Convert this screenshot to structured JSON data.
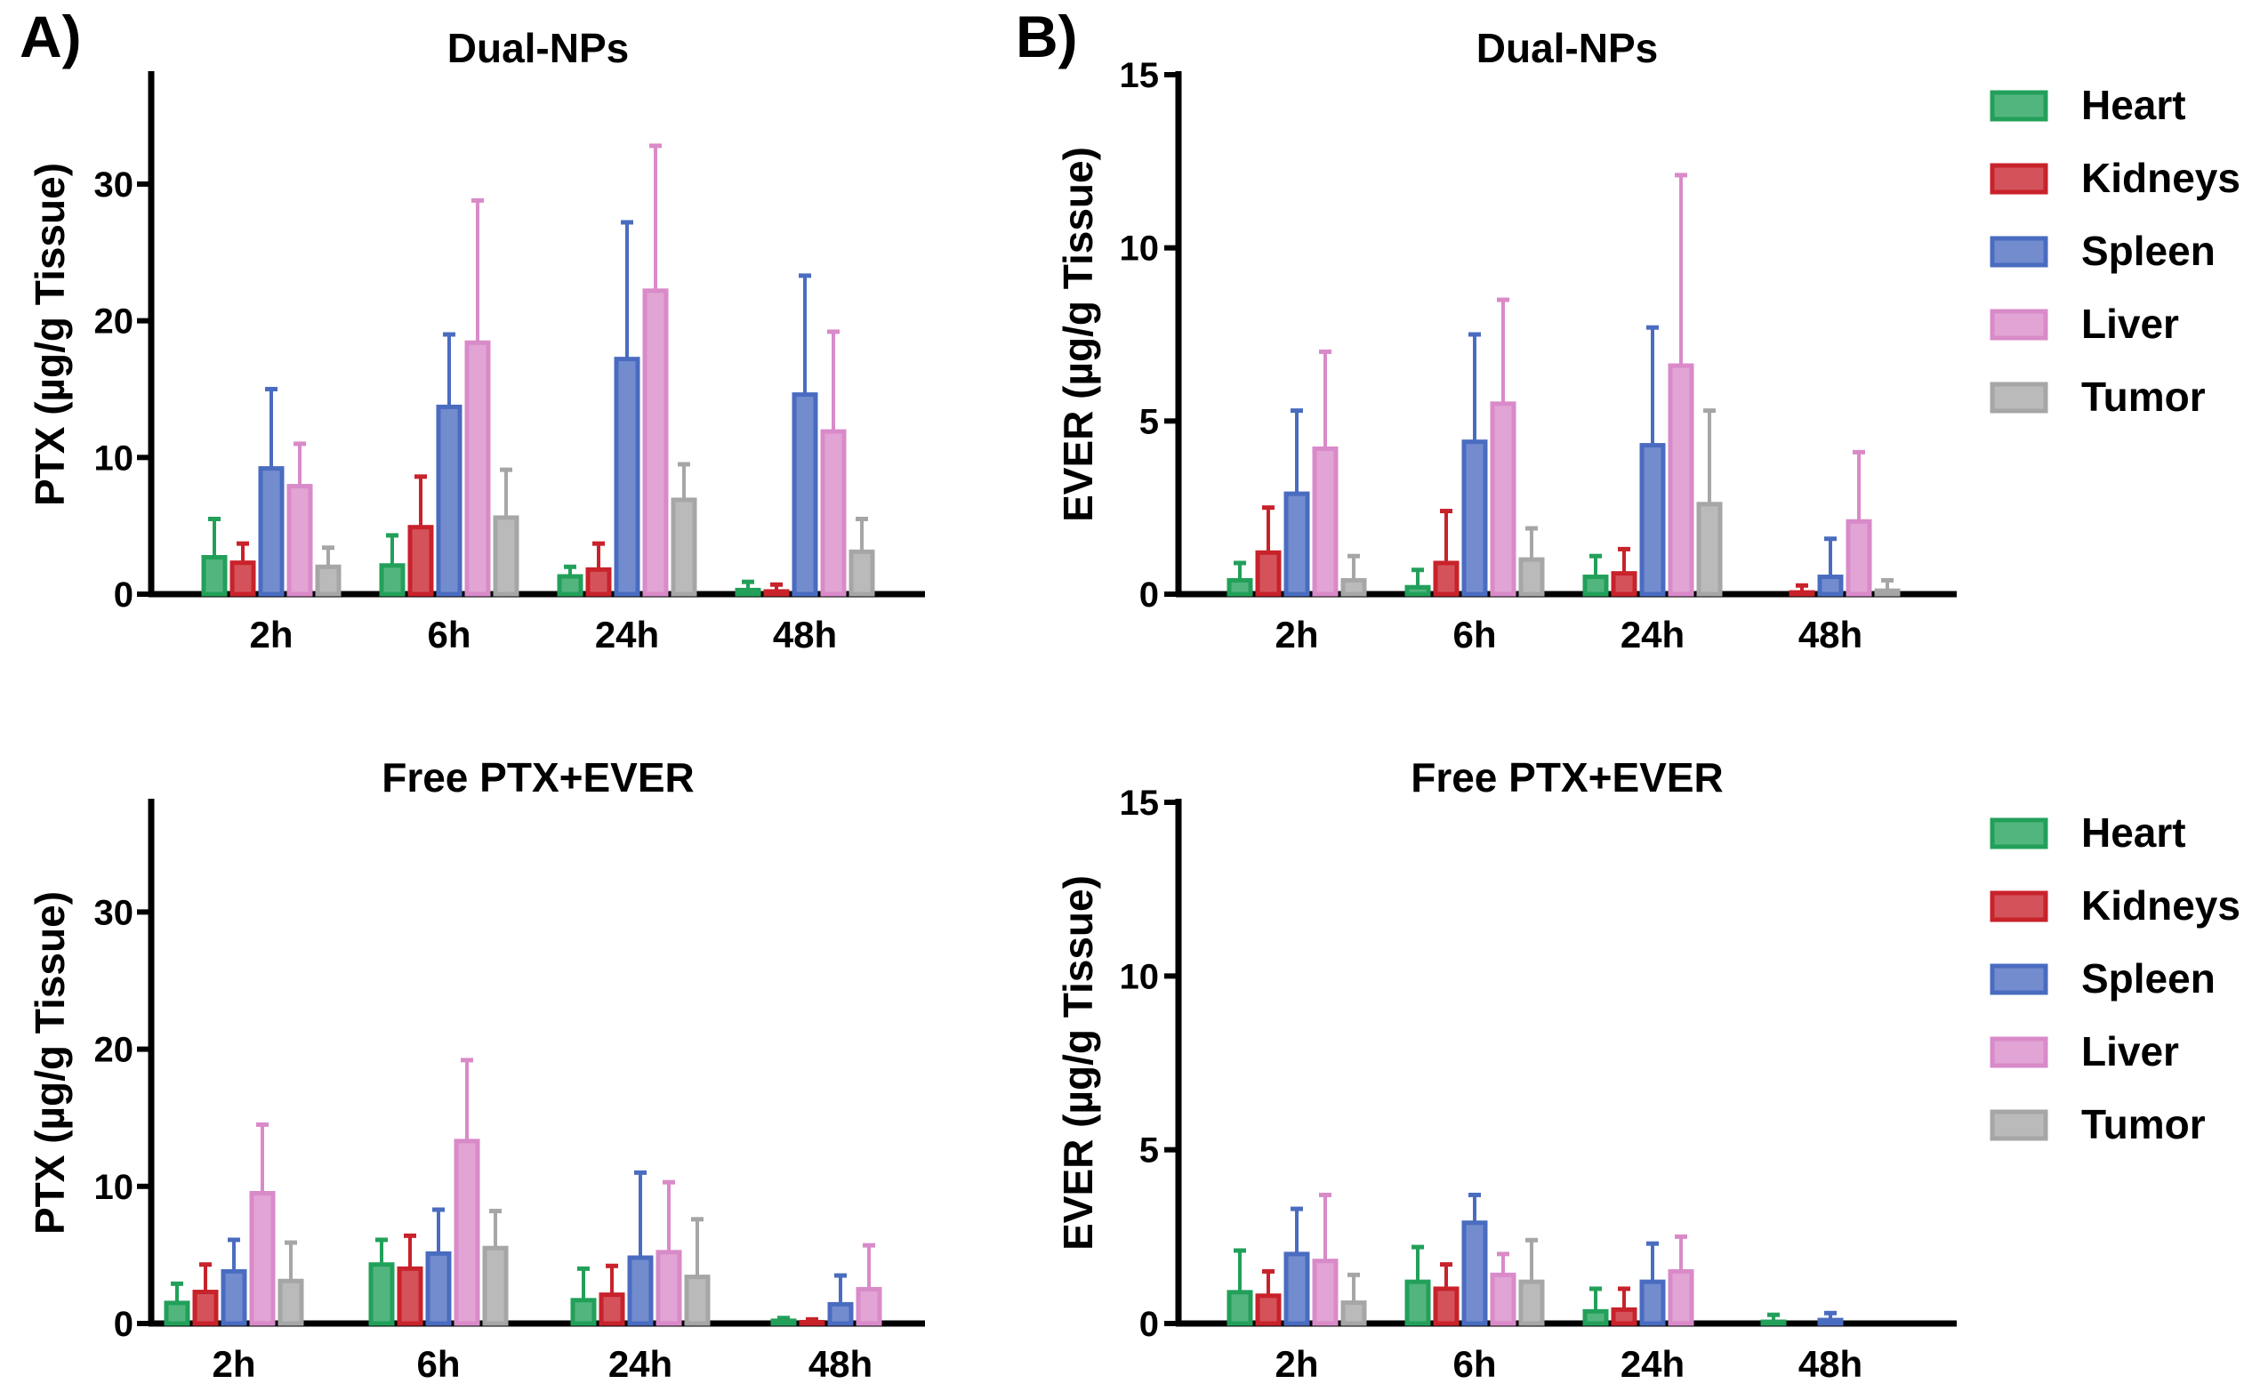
{
  "figure": {
    "panel_letters": [
      "A)",
      "B)"
    ]
  },
  "chart_data": [
    {
      "type": "bar",
      "title": "Dual-NPs",
      "ylabel": "PTX (µg/g Tissue)",
      "xlabel": "",
      "ylim": [
        0,
        38
      ],
      "yticks": [
        0,
        10,
        20,
        30
      ],
      "grid": false,
      "legend": "none",
      "categories": [
        "2h",
        "6h",
        "24h",
        "48h"
      ],
      "series": [
        {
          "name": "Heart",
          "color": "#22a05a",
          "values": [
            2.7,
            2.1,
            1.3,
            0.3
          ],
          "errors": [
            2.8,
            2.2,
            0.7,
            0.6
          ]
        },
        {
          "name": "Kidneys",
          "color": "#c8222b",
          "values": [
            2.3,
            4.9,
            1.8,
            0.2
          ],
          "errors": [
            1.4,
            3.7,
            1.9,
            0.5
          ]
        },
        {
          "name": "Spleen",
          "color": "#4a6cc0",
          "values": [
            9.2,
            13.7,
            17.2,
            14.6
          ],
          "errors": [
            5.8,
            5.3,
            10.0,
            8.7
          ]
        },
        {
          "name": "Liver",
          "color": "#d98ac8",
          "values": [
            7.9,
            18.4,
            22.2,
            11.9
          ],
          "errors": [
            3.1,
            10.4,
            10.6,
            7.3
          ]
        },
        {
          "name": "Tumor",
          "color": "#a6a6a6",
          "values": [
            2.0,
            5.6,
            6.9,
            3.1
          ],
          "errors": [
            1.4,
            3.5,
            2.6,
            2.4
          ]
        }
      ]
    },
    {
      "type": "bar",
      "title": "Dual-NPs",
      "ylabel": "EVER (µg/g Tissue)",
      "xlabel": "",
      "ylim": [
        0,
        15
      ],
      "yticks": [
        0,
        5,
        10,
        15
      ],
      "grid": false,
      "legend": "right",
      "categories": [
        "2h",
        "6h",
        "24h",
        "48h"
      ],
      "series": [
        {
          "name": "Heart",
          "color": "#22a05a",
          "values": [
            0.4,
            0.2,
            0.5,
            0.0
          ],
          "errors": [
            0.5,
            0.5,
            0.6,
            0.0
          ]
        },
        {
          "name": "Kidneys",
          "color": "#c8222b",
          "values": [
            1.2,
            0.9,
            0.6,
            0.05
          ],
          "errors": [
            1.3,
            1.5,
            0.7,
            0.2
          ]
        },
        {
          "name": "Spleen",
          "color": "#4a6cc0",
          "values": [
            2.9,
            4.4,
            4.3,
            0.5
          ],
          "errors": [
            2.4,
            3.1,
            3.4,
            1.1
          ]
        },
        {
          "name": "Liver",
          "color": "#d98ac8",
          "values": [
            4.2,
            5.5,
            6.6,
            2.1
          ],
          "errors": [
            2.8,
            3.0,
            5.5,
            2.0
          ]
        },
        {
          "name": "Tumor",
          "color": "#a6a6a6",
          "values": [
            0.4,
            1.0,
            2.6,
            0.1
          ],
          "errors": [
            0.7,
            0.9,
            2.7,
            0.3
          ]
        }
      ]
    },
    {
      "type": "bar",
      "title": "Free PTX+EVER",
      "ylabel": "PTX (µg/g Tissue)",
      "xlabel": "",
      "ylim": [
        0,
        38
      ],
      "yticks": [
        0,
        10,
        20,
        30
      ],
      "grid": false,
      "legend": "none",
      "categories": [
        "2h",
        "6h",
        "24h",
        "48h"
      ],
      "series": [
        {
          "name": "Heart",
          "color": "#22a05a",
          "values": [
            1.5,
            4.3,
            1.7,
            0.2
          ],
          "errors": [
            1.4,
            1.8,
            2.3,
            0.2
          ]
        },
        {
          "name": "Kidneys",
          "color": "#c8222b",
          "values": [
            2.3,
            4.0,
            2.1,
            0.1
          ],
          "errors": [
            2.0,
            2.4,
            2.1,
            0.2
          ]
        },
        {
          "name": "Spleen",
          "color": "#4a6cc0",
          "values": [
            3.8,
            5.1,
            4.8,
            1.4
          ],
          "errors": [
            2.3,
            3.2,
            6.2,
            2.1
          ]
        },
        {
          "name": "Liver",
          "color": "#d98ac8",
          "values": [
            9.5,
            13.3,
            5.2,
            2.5
          ],
          "errors": [
            5.0,
            5.9,
            5.1,
            3.2
          ]
        },
        {
          "name": "Tumor",
          "color": "#a6a6a6",
          "values": [
            3.1,
            5.5,
            3.4,
            0.0
          ],
          "errors": [
            2.8,
            2.7,
            4.2,
            0.0
          ]
        }
      ]
    },
    {
      "type": "bar",
      "title": "Free PTX+EVER",
      "ylabel": "EVER (µg/g Tissue)",
      "xlabel": "",
      "ylim": [
        0,
        15
      ],
      "yticks": [
        0,
        5,
        10,
        15
      ],
      "grid": false,
      "legend": "right",
      "categories": [
        "2h",
        "6h",
        "24h",
        "48h"
      ],
      "series": [
        {
          "name": "Heart",
          "color": "#22a05a",
          "values": [
            0.9,
            1.2,
            0.35,
            0.05
          ],
          "errors": [
            1.2,
            1.0,
            0.65,
            0.2
          ]
        },
        {
          "name": "Kidneys",
          "color": "#c8222b",
          "values": [
            0.8,
            1.0,
            0.4,
            0.0
          ],
          "errors": [
            0.7,
            0.7,
            0.6,
            0.0
          ]
        },
        {
          "name": "Spleen",
          "color": "#4a6cc0",
          "values": [
            2.0,
            2.9,
            1.2,
            0.1
          ],
          "errors": [
            1.3,
            0.8,
            1.1,
            0.2
          ]
        },
        {
          "name": "Liver",
          "color": "#d98ac8",
          "values": [
            1.8,
            1.4,
            1.5,
            0.0
          ],
          "errors": [
            1.9,
            0.6,
            1.0,
            0.0
          ]
        },
        {
          "name": "Tumor",
          "color": "#a6a6a6",
          "values": [
            0.6,
            1.2,
            0.0,
            0.0
          ],
          "errors": [
            0.8,
            1.2,
            0.0,
            0.0
          ]
        }
      ]
    }
  ]
}
